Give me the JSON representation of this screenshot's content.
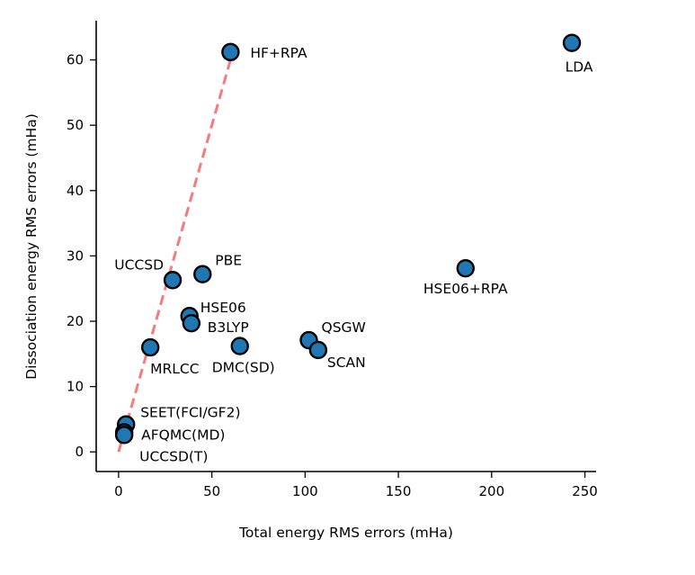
{
  "chart_data": {
    "type": "scatter",
    "title": "",
    "xlabel": "Total energy RMS errors (mHa)",
    "ylabel": "Dissociation energy RMS errors (mHa)",
    "xlim": [
      -12,
      256
    ],
    "ylim": [
      -3,
      66
    ],
    "xticks": [
      0,
      50,
      100,
      150,
      200,
      250
    ],
    "yticks": [
      0,
      10,
      20,
      30,
      40,
      50,
      60
    ],
    "grid": false,
    "legend": "none",
    "marker_color": "#1f77b4",
    "line_color": "#f47c7c",
    "points": [
      {
        "label": "HF+RPA",
        "x": 60,
        "y": 61.2,
        "anchor": "start",
        "dx": 22,
        "dy": 6
      },
      {
        "label": "LDA",
        "x": 243,
        "y": 62.6,
        "anchor": "middle",
        "dx": 8,
        "dy": 32
      },
      {
        "label": "PBE",
        "x": 45,
        "y": 27.2,
        "anchor": "start",
        "dx": 14,
        "dy": -10
      },
      {
        "label": "UCCSD",
        "x": 29,
        "y": 26.3,
        "anchor": "end",
        "dx": -10,
        "dy": -12
      },
      {
        "label": "HSE06+RPA",
        "x": 186,
        "y": 28.1,
        "anchor": "middle",
        "dx": 0,
        "dy": 28
      },
      {
        "label": "HSE06",
        "x": 38,
        "y": 20.8,
        "anchor": "start",
        "dx": 12,
        "dy": -4
      },
      {
        "label": "B3LYP",
        "x": 39,
        "y": 19.7,
        "anchor": "start",
        "dx": 18,
        "dy": 10
      },
      {
        "label": "QSGW",
        "x": 102,
        "y": 17.1,
        "anchor": "start",
        "dx": 14,
        "dy": -9
      },
      {
        "label": "SCAN",
        "x": 107,
        "y": 15.6,
        "anchor": "start",
        "dx": 10,
        "dy": 19
      },
      {
        "label": "DMC(SD)",
        "x": 65,
        "y": 16.2,
        "anchor": "middle",
        "dx": 4,
        "dy": 29
      },
      {
        "label": "MRLCC",
        "x": 17,
        "y": 16.0,
        "anchor": "start",
        "dx": 0,
        "dy": 29
      },
      {
        "label": "SEET(FCI/GF2)",
        "x": 4,
        "y": 4.2,
        "anchor": "start",
        "dx": 16,
        "dy": -8
      },
      {
        "label": "AFQMC(MD)",
        "x": 3,
        "y": 3.0,
        "anchor": "start",
        "dx": 19,
        "dy": 8
      },
      {
        "label": "UCCSD(T)",
        "x": 3,
        "y": 2.6,
        "anchor": "start",
        "dx": 17,
        "dy": 29
      }
    ],
    "fit_line": {
      "x": [
        0,
        62
      ],
      "y": [
        0,
        62
      ]
    }
  }
}
